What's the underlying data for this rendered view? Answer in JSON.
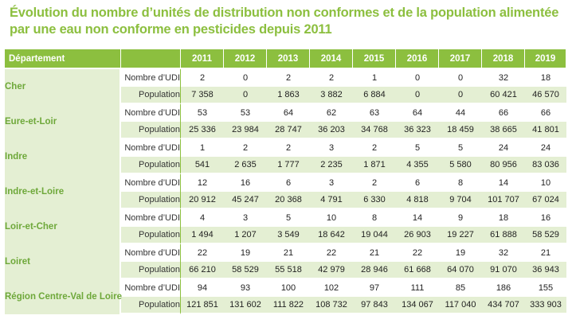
{
  "title_line1": "Évolution du nombre d’unités de distribution non conformes et de la population alimentée",
  "title_line2": "par une eau non conforme en pesticides depuis 2011",
  "header": {
    "departement": "Département",
    "years": [
      "2011",
      "2012",
      "2013",
      "2014",
      "2015",
      "2016",
      "2017",
      "2018",
      "2019"
    ]
  },
  "row_labels": {
    "udi": "Nombre d’UDI",
    "population": "Population"
  },
  "rows": [
    {
      "name": "Cher",
      "udi": [
        "2",
        "0",
        "2",
        "2",
        "1",
        "0",
        "0",
        "32",
        "18"
      ],
      "population": [
        "7 358",
        "0",
        "1 863",
        "3 882",
        "6 884",
        "0",
        "0",
        "60 421",
        "46 570"
      ]
    },
    {
      "name": "Eure-et-Loir",
      "udi": [
        "53",
        "53",
        "64",
        "62",
        "63",
        "64",
        "44",
        "66",
        "66"
      ],
      "population": [
        "25 336",
        "23 984",
        "28 747",
        "36 203",
        "34 768",
        "36 323",
        "18 459",
        "38 665",
        "41 801"
      ]
    },
    {
      "name": "Indre",
      "udi": [
        "1",
        "2",
        "2",
        "3",
        "2",
        "5",
        "5",
        "24",
        "24"
      ],
      "population": [
        "541",
        "2 635",
        "1 777",
        "2 235",
        "1 871",
        "4 355",
        "5 580",
        "80 956",
        "83 036"
      ]
    },
    {
      "name": "Indre-et-Loire",
      "udi": [
        "12",
        "16",
        "6",
        "3",
        "2",
        "6",
        "8",
        "14",
        "10"
      ],
      "population": [
        "20 912",
        "45 247",
        "20 368",
        "4 791",
        "6 330",
        "4 818",
        "9 704",
        "101 707",
        "67 024"
      ]
    },
    {
      "name": "Loir-et-Cher",
      "udi": [
        "4",
        "3",
        "5",
        "10",
        "8",
        "14",
        "9",
        "18",
        "16"
      ],
      "population": [
        "1 494",
        "1 207",
        "3 549",
        "18 642",
        "19 044",
        "26 903",
        "19 227",
        "61 888",
        "58 529"
      ]
    },
    {
      "name": "Loiret",
      "udi": [
        "22",
        "19",
        "21",
        "22",
        "21",
        "22",
        "19",
        "32",
        "21"
      ],
      "population": [
        "66 210",
        "58 529",
        "55 518",
        "42 979",
        "28 946",
        "61 668",
        "64 070",
        "91 070",
        "36 943"
      ]
    },
    {
      "name": "Région Centre-Val de Loire",
      "udi": [
        "94",
        "93",
        "100",
        "102",
        "97",
        "111",
        "85",
        "186",
        "155"
      ],
      "population": [
        "121 851",
        "131 602",
        "111 822",
        "108 732",
        "97 843",
        "134 067",
        "117 040",
        "434 707",
        "333 903"
      ]
    }
  ],
  "colors": {
    "accent": "#8cbf3f",
    "light": "#e4efd3",
    "dep_text": "#6ea83a"
  }
}
